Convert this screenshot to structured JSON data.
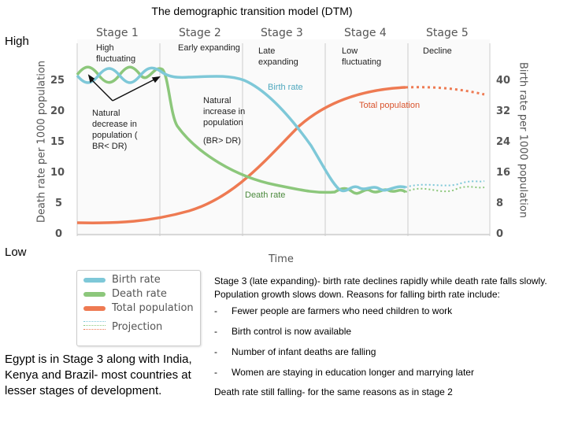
{
  "title": "The demographic transition model (DTM)",
  "side_high": "High",
  "side_low": "Low",
  "stages": [
    "Stage 1",
    "Stage 2",
    "Stage 3",
    "Stage 4",
    "Stage 5"
  ],
  "stage_notes": [
    "High fluctuating",
    "Early expanding",
    "Late expanding",
    "Low fluctuating",
    "Decline"
  ],
  "notes": {
    "natural_decrease": "Natural decrease in population ( BR< DR)",
    "natural_increase": "Natural increase in population",
    "br_gt_dr": "(BR> DR)",
    "birth_rate": "Birth rate",
    "total_population": "Total population",
    "death_rate": "Death rate"
  },
  "axes": {
    "left_title": "Death rate per 1000 population",
    "right_title": "Birth rate per 1000 population",
    "x_title": "Time",
    "left_ticks": [
      "0",
      "5",
      "10",
      "15",
      "20",
      "25"
    ],
    "right_ticks": [
      "0",
      "8",
      "16",
      "24",
      "32",
      "40"
    ]
  },
  "legend": {
    "birth_rate": "Birth rate",
    "death_rate": "Death rate",
    "total_population": "Total population",
    "projection": "Projection"
  },
  "colors": {
    "birth": "#7ec8d8",
    "death": "#8cc77b",
    "population": "#ee7a52",
    "grid": "#cccccc",
    "axis_text": "#555555"
  },
  "description": {
    "intro": "Stage 3 (late expanding)- birth rate declines rapidly while death rate falls slowly. Population growth slows down. Reasons for falling birth rate include:",
    "bullets": [
      "Fewer people are farmers who need children to work",
      "Birth control is now available",
      "Number of infant deaths are falling",
      "Women are staying in education longer and marrying later"
    ],
    "still": "Death rate still falling- for the same reasons as in stage 2"
  },
  "egypt": "Egypt is in Stage 3 along with India, Kenya and Brazil- most countries at lesser stages of development."
}
